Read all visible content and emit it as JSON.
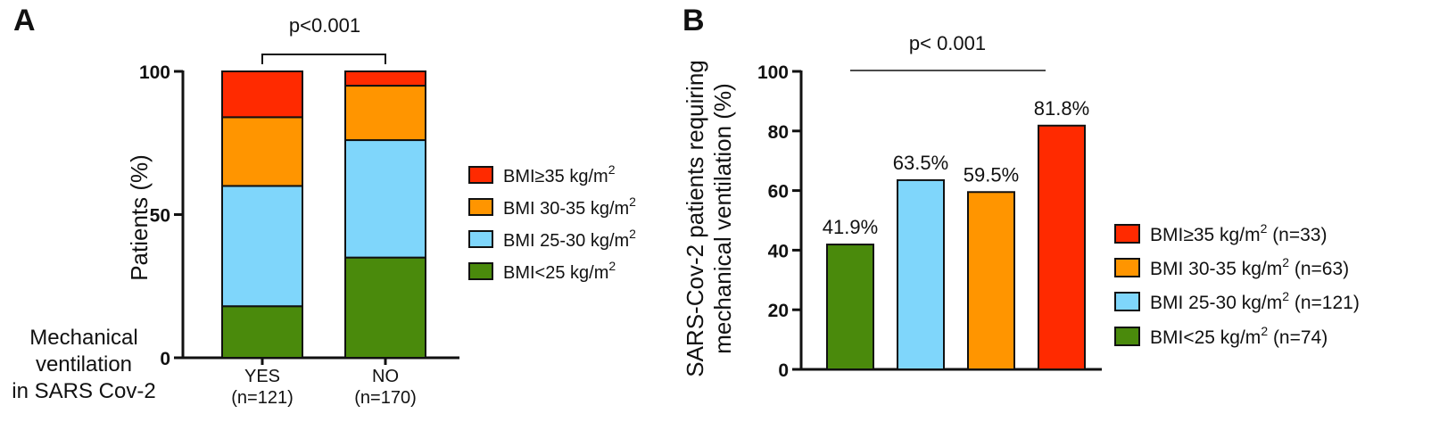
{
  "chart_data": [
    {
      "panel": "A",
      "type": "bar",
      "stacked": true,
      "ylabel": "Patients (%)",
      "ylim": [
        0,
        100
      ],
      "yticks": [
        "0",
        "50",
        "100"
      ],
      "row_title": [
        "Mechanical",
        "ventilation",
        "in SARS Cov-2"
      ],
      "categories": [
        {
          "label": "YES",
          "sub": "(n=121)"
        },
        {
          "label": "NO",
          "sub": "(n=170)"
        }
      ],
      "series": [
        {
          "name": "BMI<25 kg/m",
          "sup": "2",
          "color": "#4a8a0c",
          "values": [
            18,
            35
          ]
        },
        {
          "name": "BMI 25-30 kg/m",
          "sup": "2",
          "color": "#7fd6fb",
          "values": [
            42,
            41
          ]
        },
        {
          "name": "BMI 30-35 kg/m",
          "sup": "2",
          "color": "#ff9500",
          "values": [
            24,
            19
          ]
        },
        {
          "name": "BMI≥35 kg/m",
          "sup": "2",
          "color": "#ff2a00",
          "values": [
            16,
            5
          ]
        }
      ],
      "annotation": "p<0.001",
      "legend_position": "right"
    },
    {
      "panel": "B",
      "type": "bar",
      "ylabel": [
        "SARS-Cov-2 patients requiring",
        "mechanical ventilation (%)"
      ],
      "ylim": [
        0,
        100
      ],
      "yticks": [
        "0",
        "20",
        "40",
        "60",
        "80",
        "100"
      ],
      "bars": [
        {
          "value": 41.9,
          "label": "41.9%",
          "color": "#4a8a0c"
        },
        {
          "value": 63.5,
          "label": "63.5%",
          "color": "#7fd6fb"
        },
        {
          "value": 59.5,
          "label": "59.5%",
          "color": "#ff9500"
        },
        {
          "value": 81.8,
          "label": "81.8%",
          "color": "#ff2a00"
        }
      ],
      "legend": [
        {
          "name": "BMI≥35 kg/m",
          "sup": "2",
          "n": " (n=33)",
          "color": "#ff2a00"
        },
        {
          "name": "BMI 30-35 kg/m",
          "sup": "2",
          "n": " (n=63)",
          "color": "#ff9500"
        },
        {
          "name": "BMI 25-30 kg/m",
          "sup": "2",
          "n": " (n=121)",
          "color": "#7fd6fb"
        },
        {
          "name": "BMI<25 kg/m",
          "sup": "2",
          "n": " (n=74)",
          "color": "#4a8a0c"
        }
      ],
      "annotation": "p< 0.001",
      "legend_position": "right"
    }
  ]
}
